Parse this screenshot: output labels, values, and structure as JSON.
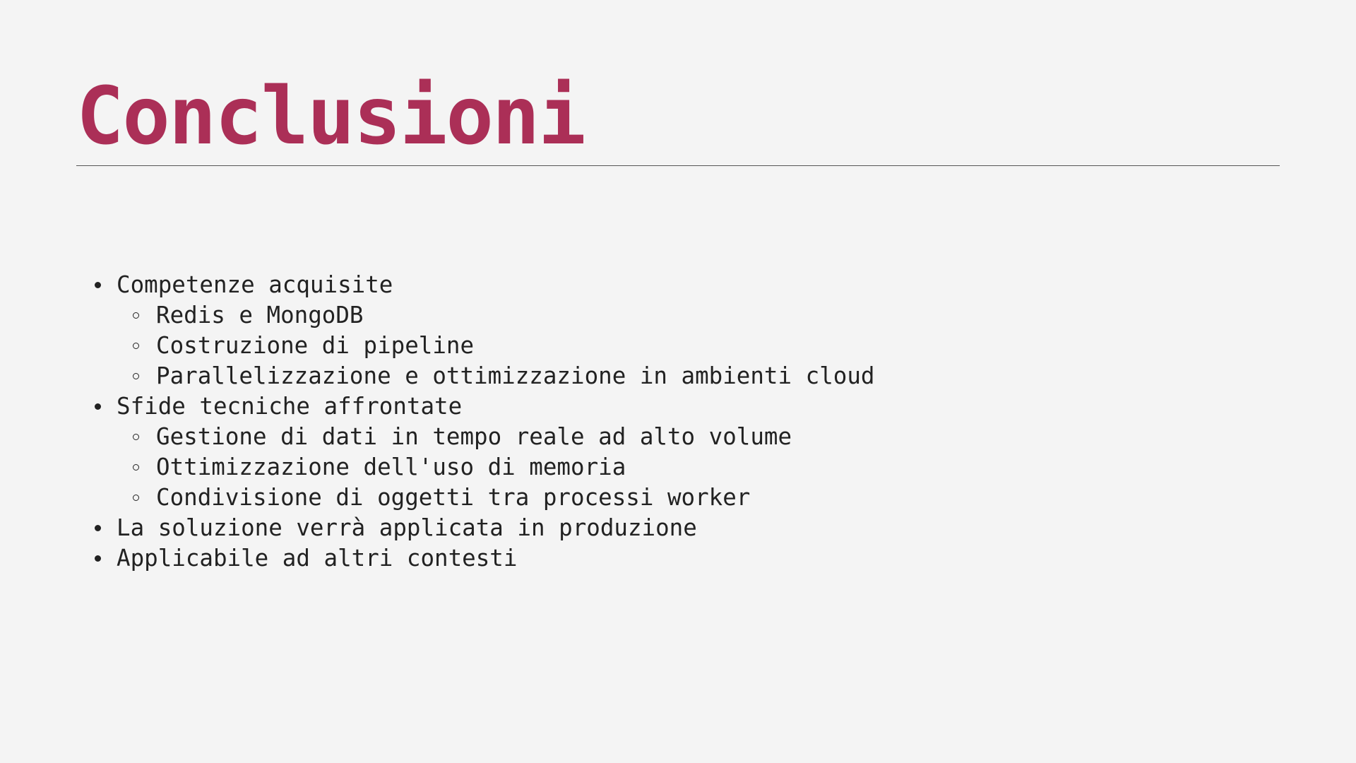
{
  "slide": {
    "title": "Conclusioni",
    "colors": {
      "title": "#ab2f57",
      "text": "#222222",
      "background": "#f4f4f4",
      "rule": "#555555"
    },
    "items": [
      {
        "text": "Competenze acquisite",
        "children": [
          "Redis e MongoDB",
          "Costruzione di pipeline",
          "Parallelizzazione e ottimizzazione in ambienti cloud"
        ]
      },
      {
        "text": "Sfide tecniche affrontate",
        "children": [
          "Gestione di dati in tempo reale ad alto volume",
          "Ottimizzazione dell'uso di memoria",
          "Condivisione di oggetti tra processi worker"
        ]
      },
      {
        "text": "La soluzione verrà applicata in produzione",
        "children": []
      },
      {
        "text": "Applicabile ad altri contesti",
        "children": []
      }
    ]
  }
}
